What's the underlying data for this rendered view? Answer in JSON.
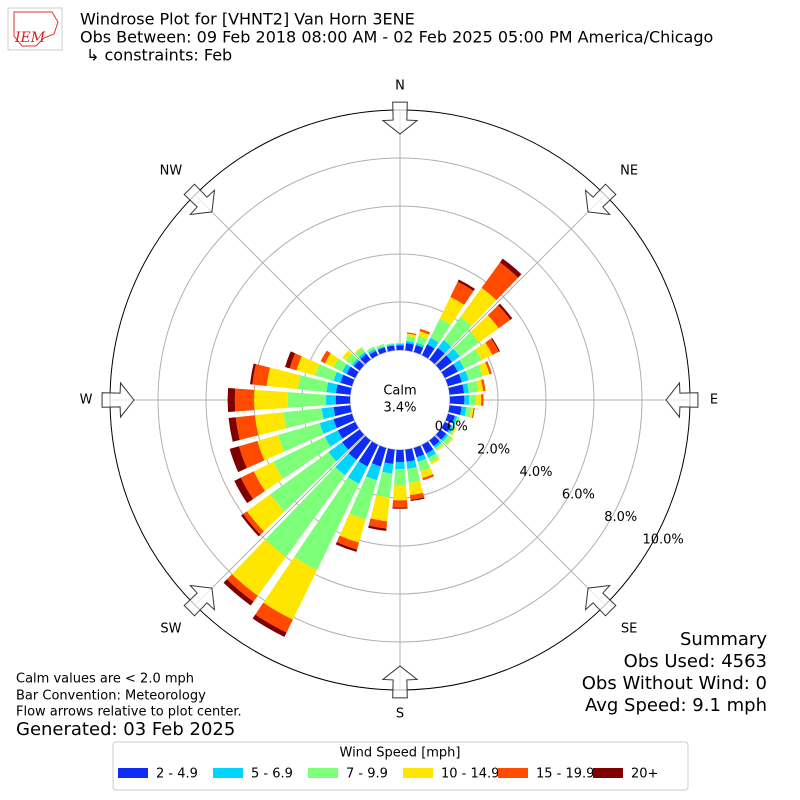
{
  "chart_data": {
    "type": "windrose",
    "title_lines": [
      "Windrose Plot for [VHNT2] Van Horn 3ENE",
      "Obs Between: 09 Feb 2018 08:00 AM - 02 Feb 2025 05:00 PM America/Chicago",
      "↳ constraints: Feb"
    ],
    "logo_text": "IEM",
    "x": [
      0,
      10,
      20,
      30,
      40,
      50,
      60,
      70,
      80,
      90,
      100,
      110,
      120,
      130,
      140,
      150,
      160,
      170,
      180,
      190,
      200,
      210,
      220,
      230,
      240,
      250,
      260,
      270,
      280,
      290,
      300,
      310,
      320,
      330,
      340,
      350
    ],
    "series": [
      {
        "name": "2 - 4.9",
        "color": "#0d2cf5",
        "values": [
          0.2,
          0.3,
          0.3,
          0.5,
          0.6,
          0.6,
          0.6,
          0.6,
          0.6,
          0.6,
          0.5,
          0.3,
          0.3,
          0.3,
          0.3,
          0.4,
          0.4,
          0.5,
          0.5,
          0.6,
          0.8,
          1.0,
          1.0,
          0.9,
          0.8,
          0.8,
          0.7,
          0.6,
          0.6,
          0.5,
          0.4,
          0.3,
          0.3,
          0.2,
          0.2,
          0.2
        ]
      },
      {
        "name": "5 - 6.9",
        "color": "#00d4ff",
        "values": [
          0.05,
          0.1,
          0.1,
          0.3,
          0.4,
          0.4,
          0.3,
          0.3,
          0.2,
          0.2,
          0.2,
          0.1,
          0.1,
          0.1,
          0.1,
          0.2,
          0.2,
          0.3,
          0.3,
          0.4,
          0.6,
          0.8,
          0.8,
          0.7,
          0.6,
          0.6,
          0.5,
          0.4,
          0.4,
          0.3,
          0.2,
          0.1,
          0.1,
          0.1,
          0.05,
          0.05
        ]
      },
      {
        "name": "7 - 9.9",
        "color": "#7dff7a",
        "values": [
          0.05,
          0.2,
          0.3,
          0.9,
          1.2,
          1.0,
          0.8,
          0.6,
          0.4,
          0.3,
          0.2,
          0.1,
          0.1,
          0.2,
          0.1,
          0.2,
          0.4,
          0.6,
          0.7,
          1.0,
          1.7,
          4.0,
          4.2,
          3.0,
          2.4,
          1.8,
          1.6,
          1.6,
          1.2,
          0.8,
          0.4,
          0.3,
          0.2,
          0.1,
          0.1,
          0.05
        ]
      },
      {
        "name": "10 - 14.9",
        "color": "#ffe600",
        "values": [
          0,
          0.1,
          0.2,
          1.0,
          1.5,
          1.0,
          0.5,
          0.3,
          0.2,
          0.2,
          0.1,
          0,
          0.05,
          0.05,
          0.05,
          0.1,
          0.3,
          0.5,
          0.6,
          1.0,
          1.0,
          2.3,
          2.0,
          1.2,
          0.9,
          0.9,
          1.2,
          1.4,
          1.3,
          0.8,
          0.4,
          0.2,
          0.05,
          0,
          0,
          0
        ]
      },
      {
        "name": "15 - 19.9",
        "color": "#ff4a00",
        "values": [
          0,
          0.05,
          0.1,
          0.7,
          1.3,
          0.6,
          0.3,
          0.1,
          0.1,
          0.1,
          0.05,
          0,
          0,
          0,
          0,
          0,
          0.1,
          0.2,
          0.3,
          0.3,
          0.3,
          0.6,
          0.3,
          0.2,
          0.6,
          0.8,
          0.8,
          0.8,
          0.6,
          0.3,
          0.2,
          0,
          0,
          0,
          0,
          0
        ]
      },
      {
        "name": "20+",
        "color": "#800000",
        "values": [
          0,
          0,
          0,
          0.1,
          0.2,
          0.1,
          0.05,
          0,
          0,
          0,
          0,
          0,
          0,
          0,
          0,
          0,
          0,
          0.05,
          0.05,
          0.1,
          0.1,
          0.2,
          0.2,
          0.1,
          0.3,
          0.4,
          0.3,
          0.3,
          0.1,
          0.2,
          0,
          0,
          0,
          0,
          0,
          0
        ]
      }
    ],
    "rlim": [
      0,
      10
    ],
    "rticks": [
      {
        "value": 0,
        "label": "0.0%"
      },
      {
        "value": 2,
        "label": "2.0%"
      },
      {
        "value": 4,
        "label": "4.0%"
      },
      {
        "value": 6,
        "label": "6.0%"
      },
      {
        "value": 8,
        "label": "8.0%"
      },
      {
        "value": 10,
        "label": "10.0%"
      }
    ],
    "direction_labels": [
      "N",
      "NE",
      "E",
      "SE",
      "S",
      "SW",
      "W",
      "NW"
    ],
    "calm": {
      "label": "Calm",
      "value": 3.4,
      "value_label": "3.4%"
    },
    "grid": true,
    "legend_title": "Wind Speed [mph]",
    "notes": [
      "Calm values are < 2.0 mph",
      "Bar Convention: Meteorology",
      "Flow arrows relative to plot center."
    ],
    "generated": "Generated: 03 Feb 2025",
    "summary": [
      "Summary",
      "Obs Used: 4563",
      "Obs Without Wind: 0",
      "Avg Speed: 9.1 mph"
    ]
  }
}
